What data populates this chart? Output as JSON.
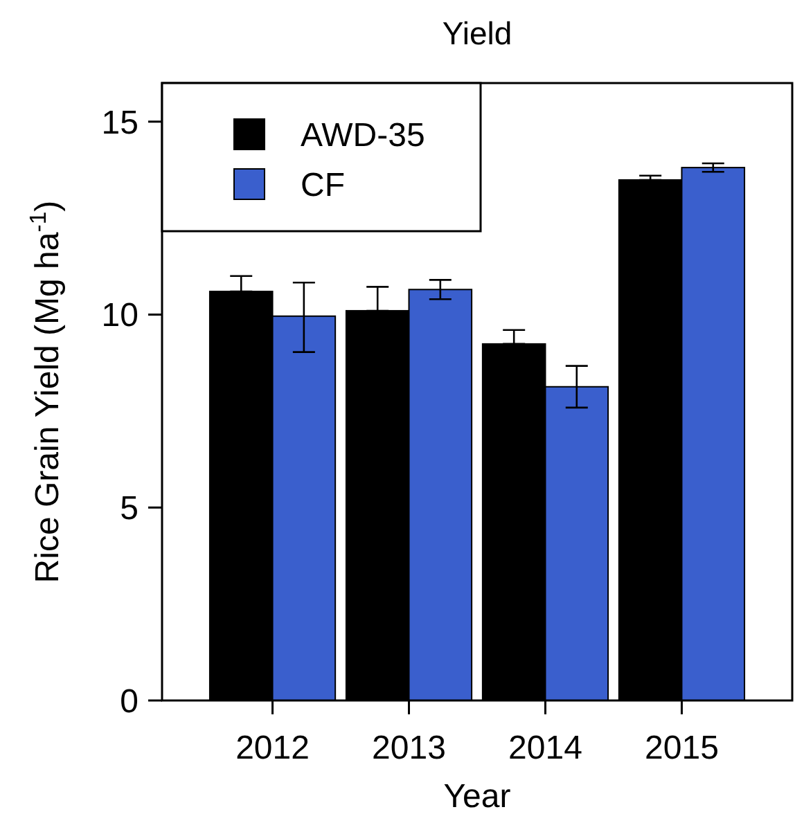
{
  "chart_data": {
    "type": "bar",
    "title": "Yield",
    "xlabel": "Year",
    "ylabel": "Rice Grain Yield (Mg ha$^{-1}$)",
    "categories": [
      "2012",
      "2013",
      "2014",
      "2015"
    ],
    "series": [
      {
        "name": "AWD-35",
        "color": "#000000",
        "values": [
          10.6,
          10.1,
          9.24,
          13.49
        ],
        "errors": [
          [
            10.6,
            11.0
          ],
          [
            10.1,
            10.72
          ],
          [
            9.24,
            9.6
          ],
          [
            13.49,
            13.6
          ]
        ]
      },
      {
        "name": "CF",
        "color": "#3a5fcd",
        "values": [
          9.96,
          10.65,
          8.13,
          13.81
        ],
        "errors": [
          [
            9.03,
            10.83
          ],
          [
            10.4,
            10.9
          ],
          [
            7.59,
            8.67
          ],
          [
            13.7,
            13.92
          ]
        ]
      }
    ],
    "ylim": [
      0,
      16
    ],
    "yticks": [
      0,
      5,
      10,
      15
    ],
    "legend": "top left",
    "grid": false
  }
}
